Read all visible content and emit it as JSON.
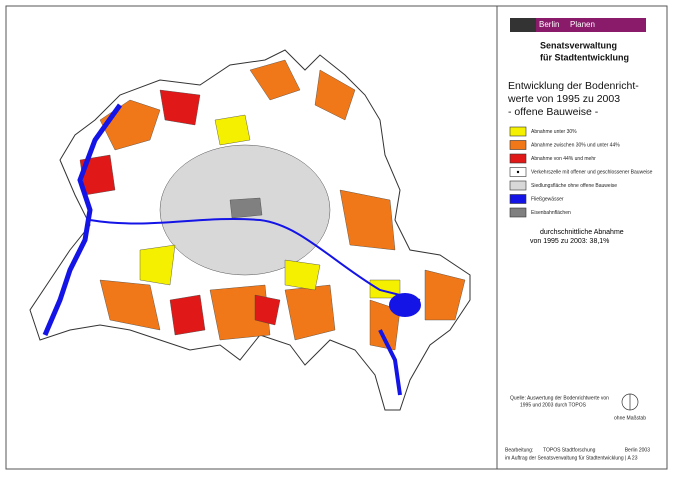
{
  "logo": {
    "left": "Berlin",
    "right": "Planen"
  },
  "organisation": [
    "Senatsverwaltung",
    "für Stadtentwicklung"
  ],
  "title": [
    "Entwicklung der Bodenricht-",
    "werte von 1995 zu 2003",
    "- offene Bauweise -"
  ],
  "legend": [
    {
      "label": "Abnahme unter 30%",
      "color": "#f5f000"
    },
    {
      "label": "Abnahme zwischen 30% und unter 44%",
      "color": "#f07818"
    },
    {
      "label": "Abnahme von 44% und mehr",
      "color": "#e01818"
    },
    {
      "label": "Verkehrszelle mit offener und geschlossener Bauweise",
      "color": "#ffffff"
    },
    {
      "label": "Siedlungsfläche ohne offene Bauweise",
      "color": "#d8d8d8"
    },
    {
      "label": "Fließgewässer",
      "color": "#1414e6"
    },
    {
      "label": "Eisenbahnflächen",
      "color": "#808080"
    }
  ],
  "summary": [
    "durchschnittliche Abnahme",
    "von 1995 zu 2003: 38,1%"
  ],
  "source": [
    "Quelle: Auswertung der Bodenrichtwerte von",
    "1995 und 2003 durch TOPOS"
  ],
  "scale_note": "ohne Maßstab",
  "credits": {
    "label": "Bearbeitung:",
    "author": "TOPOS Stadtforschung",
    "place_year": "Berlin 2003",
    "commission": "im Auftrag der Senatsverwaltung für Stadtentwicklung | A 23"
  }
}
